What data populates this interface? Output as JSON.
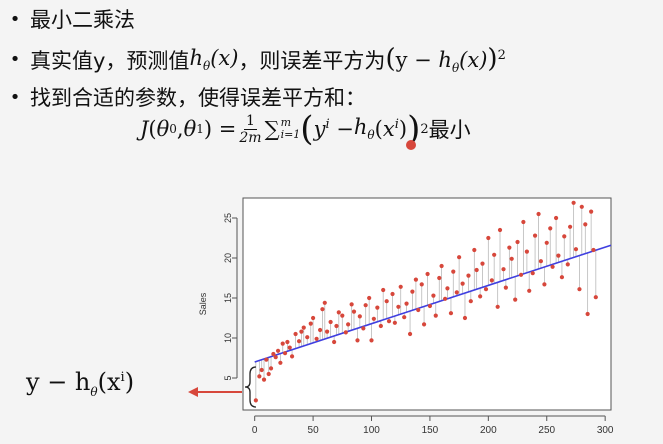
{
  "bullets": [
    {
      "text": "最小二乘法"
    },
    {
      "prefix": "真实值y，预测值",
      "mid": "，则误差平方为",
      "hx": "(x)"
    },
    {
      "text": "找到合适的参数，使得误差平方和："
    }
  ],
  "equation": {
    "lhs_J": "J(θ",
    "frac_num": "1",
    "frac_den": "2m",
    "sum_top": "m",
    "sum_bottom": "i=1",
    "suffix": "最小"
  },
  "left_label": "y − h",
  "chart_data": {
    "type": "scatter",
    "title": "",
    "xlabel": "",
    "ylabel": "Sales",
    "xlim": [
      -10,
      305
    ],
    "ylim": [
      1,
      27.5
    ],
    "x_ticks": [
      "0",
      "50",
      "100",
      "150",
      "200",
      "250",
      "300"
    ],
    "y_ticks": [
      "5",
      "10",
      "15",
      "20",
      "25"
    ],
    "regression_line": {
      "x": [
        0,
        305
      ],
      "y": [
        7.0,
        21.6
      ]
    },
    "points": [
      [
        1,
        2.2
      ],
      [
        4,
        5.2
      ],
      [
        6,
        6.0
      ],
      [
        8,
        4.8
      ],
      [
        10,
        7.3
      ],
      [
        12,
        5.5
      ],
      [
        14,
        6.2
      ],
      [
        16,
        8.0
      ],
      [
        18,
        7.6
      ],
      [
        20,
        8.4
      ],
      [
        22,
        6.9
      ],
      [
        24,
        9.3
      ],
      [
        26,
        8.1
      ],
      [
        28,
        9.5
      ],
      [
        30,
        8.8
      ],
      [
        32,
        7.7
      ],
      [
        35,
        10.5
      ],
      [
        38,
        9.6
      ],
      [
        40,
        10.8
      ],
      [
        42,
        11.3
      ],
      [
        45,
        10.1
      ],
      [
        48,
        11.8
      ],
      [
        50,
        12.5
      ],
      [
        53,
        9.9
      ],
      [
        56,
        11.0
      ],
      [
        58,
        13.6
      ],
      [
        60,
        14.4
      ],
      [
        62,
        10.8
      ],
      [
        65,
        12.0
      ],
      [
        68,
        9.5
      ],
      [
        70,
        11.5
      ],
      [
        72,
        13.2
      ],
      [
        75,
        12.8
      ],
      [
        78,
        10.7
      ],
      [
        80,
        11.7
      ],
      [
        83,
        14.2
      ],
      [
        85,
        13.3
      ],
      [
        88,
        9.7
      ],
      [
        90,
        12.7
      ],
      [
        93,
        11.2
      ],
      [
        95,
        14.1
      ],
      [
        98,
        15.0
      ],
      [
        100,
        9.7
      ],
      [
        102,
        12.4
      ],
      [
        105,
        13.8
      ],
      [
        108,
        11.5
      ],
      [
        110,
        16.0
      ],
      [
        113,
        14.6
      ],
      [
        115,
        12.1
      ],
      [
        118,
        15.5
      ],
      [
        120,
        11.9
      ],
      [
        123,
        13.9
      ],
      [
        125,
        16.4
      ],
      [
        128,
        12.6
      ],
      [
        130,
        14.3
      ],
      [
        133,
        10.5
      ],
      [
        135,
        15.8
      ],
      [
        138,
        17.3
      ],
      [
        140,
        13.5
      ],
      [
        143,
        16.7
      ],
      [
        145,
        11.7
      ],
      [
        148,
        18.0
      ],
      [
        150,
        14.0
      ],
      [
        153,
        15.3
      ],
      [
        155,
        12.8
      ],
      [
        158,
        17.5
      ],
      [
        160,
        19.0
      ],
      [
        163,
        14.9
      ],
      [
        165,
        16.2
      ],
      [
        168,
        13.1
      ],
      [
        170,
        18.3
      ],
      [
        173,
        15.7
      ],
      [
        175,
        20.1
      ],
      [
        178,
        16.8
      ],
      [
        180,
        12.5
      ],
      [
        183,
        17.8
      ],
      [
        185,
        14.6
      ],
      [
        188,
        21.0
      ],
      [
        190,
        18.5
      ],
      [
        193,
        15.2
      ],
      [
        195,
        19.3
      ],
      [
        198,
        16.1
      ],
      [
        200,
        22.5
      ],
      [
        203,
        17.2
      ],
      [
        205,
        20.4
      ],
      [
        208,
        13.9
      ],
      [
        210,
        23.5
      ],
      [
        213,
        18.6
      ],
      [
        215,
        16.3
      ],
      [
        218,
        21.3
      ],
      [
        220,
        19.9
      ],
      [
        223,
        14.8
      ],
      [
        225,
        22.0
      ],
      [
        228,
        17.9
      ],
      [
        230,
        24.5
      ],
      [
        233,
        20.8
      ],
      [
        235,
        15.9
      ],
      [
        238,
        18.1
      ],
      [
        240,
        22.8
      ],
      [
        243,
        25.5
      ],
      [
        245,
        19.6
      ],
      [
        248,
        16.7
      ],
      [
        250,
        21.9
      ],
      [
        253,
        23.7
      ],
      [
        255,
        18.9
      ],
      [
        258,
        25.0
      ],
      [
        260,
        20.3
      ],
      [
        263,
        17.6
      ],
      [
        265,
        22.7
      ],
      [
        268,
        19.2
      ],
      [
        270,
        23.9
      ],
      [
        273,
        26.9
      ],
      [
        275,
        21.1
      ],
      [
        278,
        16.1
      ],
      [
        280,
        26.4
      ],
      [
        283,
        24.2
      ],
      [
        285,
        13.0
      ],
      [
        288,
        25.8
      ],
      [
        290,
        21.0
      ],
      [
        292,
        15.1
      ]
    ]
  }
}
